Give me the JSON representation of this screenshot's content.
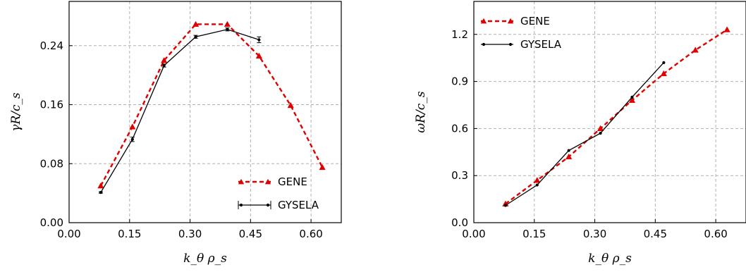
{
  "chart_data": [
    {
      "type": "line",
      "xlabel": "k_θ ρ_s",
      "ylabel": "γR/c_s",
      "xlim": [
        0.0,
        0.675
      ],
      "ylim": [
        0.0,
        0.3
      ],
      "xticks": [
        "0.00",
        "0.15",
        "0.30",
        "0.45",
        "0.60"
      ],
      "xtick_values": [
        0.0,
        0.15,
        0.3,
        0.45,
        0.6
      ],
      "yticks": [
        "0.00",
        "0.08",
        "0.16",
        "0.24"
      ],
      "ytick_values": [
        0.0,
        0.08,
        0.16,
        0.24
      ],
      "grid": true,
      "legend_position": "lower-right",
      "series": [
        {
          "name": "GENE",
          "color": "#e00000",
          "style": "dashed",
          "marker": "triangle",
          "x": [
            0.0785,
            0.157,
            0.2355,
            0.314,
            0.3925,
            0.471,
            0.5495,
            0.628
          ],
          "y": [
            0.05,
            0.13,
            0.22,
            0.269,
            0.269,
            0.226,
            0.159,
            0.075
          ]
        },
        {
          "name": "GYSELA",
          "color": "#000000",
          "style": "solid",
          "marker": "dot",
          "errorbars": true,
          "x": [
            0.0785,
            0.157,
            0.2355,
            0.314,
            0.3925,
            0.471
          ],
          "y": [
            0.041,
            0.113,
            0.213,
            0.252,
            0.262,
            0.248
          ],
          "yerr": [
            0.001,
            0.003,
            0.002,
            0.002,
            0.002,
            0.004
          ]
        }
      ]
    },
    {
      "type": "line",
      "xlabel": "k_θ ρ_s",
      "ylabel": "ωR/c_s",
      "xlim": [
        0.0,
        0.675
      ],
      "ylim": [
        0.0,
        1.41
      ],
      "xticks": [
        "0.00",
        "0.15",
        "0.30",
        "0.45",
        "0.60"
      ],
      "xtick_values": [
        0.0,
        0.15,
        0.3,
        0.45,
        0.6
      ],
      "yticks": [
        "0.0",
        "0.3",
        "0.6",
        "0.9",
        "1.2"
      ],
      "ytick_values": [
        0.0,
        0.3,
        0.6,
        0.9,
        1.2
      ],
      "grid": true,
      "legend_position": "upper-left",
      "series": [
        {
          "name": "GENE",
          "color": "#e00000",
          "style": "dashed",
          "marker": "triangle",
          "x": [
            0.0785,
            0.157,
            0.2355,
            0.314,
            0.3925,
            0.471,
            0.5495,
            0.628
          ],
          "y": [
            0.12,
            0.27,
            0.42,
            0.6,
            0.78,
            0.95,
            1.1,
            1.23
          ]
        },
        {
          "name": "GYSELA",
          "color": "#000000",
          "style": "solid",
          "marker": "dot",
          "errorbars": false,
          "x": [
            0.0785,
            0.157,
            0.2355,
            0.314,
            0.3925,
            0.471
          ],
          "y": [
            0.11,
            0.24,
            0.46,
            0.57,
            0.8,
            1.02
          ]
        }
      ]
    }
  ]
}
